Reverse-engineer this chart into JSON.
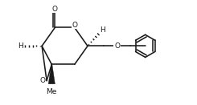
{
  "bg": "#ffffff",
  "lc": "#1a1a1a",
  "lw": 1.15,
  "fs": 6.5,
  "figsize": [
    2.45,
    1.31
  ],
  "dpi": 100,
  "xlim": [
    -0.3,
    8.7
  ],
  "ylim": [
    0.3,
    5.0
  ]
}
